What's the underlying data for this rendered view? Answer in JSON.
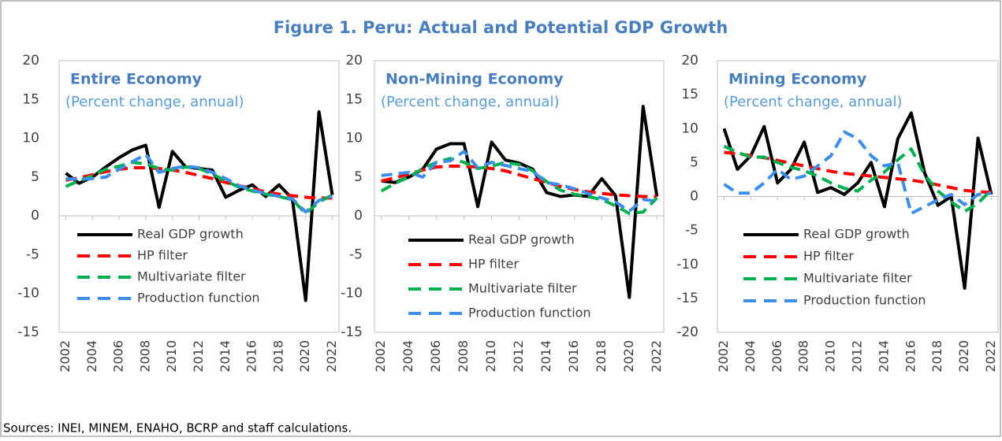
{
  "title": "Figure 1. Peru: Actual and Potential GDP Growth",
  "source": "Sources: INEI, MINEM, ENAHO, BCRP and staff calculations.",
  "chart_data": [
    {
      "type": "line",
      "title": "Entire Economy",
      "subtitle": "(Percent change, annual)",
      "x": [
        2002,
        2003,
        2004,
        2005,
        2006,
        2007,
        2008,
        2009,
        2010,
        2011,
        2012,
        2013,
        2014,
        2015,
        2016,
        2017,
        2018,
        2019,
        2020,
        2021,
        2022
      ],
      "xlim": [
        2001.5,
        2022.5
      ],
      "xticks": [
        2002,
        2004,
        2006,
        2008,
        2010,
        2012,
        2014,
        2016,
        2018,
        2020,
        2022
      ],
      "ylim": [
        -15,
        20
      ],
      "yticks": [
        -15,
        -10,
        -5,
        0,
        5,
        10,
        15,
        20
      ],
      "series": [
        {
          "name": "Real GDP growth",
          "color": "#000000",
          "values": [
            5.5,
            4.2,
            5.0,
            6.3,
            7.5,
            8.5,
            9.1,
            1.1,
            8.3,
            6.3,
            6.1,
            5.9,
            2.4,
            3.3,
            4.0,
            2.5,
            4.0,
            2.2,
            -10.9,
            13.4,
            2.7
          ]
        },
        {
          "name": "HP filter",
          "color": "#ff0000",
          "values": [
            4.6,
            4.9,
            5.3,
            5.7,
            6.0,
            6.2,
            6.2,
            6.1,
            5.9,
            5.6,
            5.2,
            4.8,
            4.3,
            3.9,
            3.5,
            3.1,
            2.8,
            2.6,
            2.4,
            2.3,
            2.3
          ]
        },
        {
          "name": "Multivariate filter",
          "color": "#00b050",
          "values": [
            3.8,
            4.5,
            5.2,
            6.0,
            6.4,
            6.9,
            6.7,
            6.1,
            5.9,
            6.3,
            6.1,
            5.4,
            4.5,
            3.7,
            3.2,
            2.8,
            2.5,
            2.1,
            0.3,
            1.8,
            2.7
          ]
        },
        {
          "name": "Production function",
          "color": "#3d8ee8",
          "values": [
            4.8,
            4.7,
            4.8,
            5.0,
            6.0,
            7.0,
            7.9,
            5.6,
            6.1,
            6.4,
            6.2,
            5.6,
            4.8,
            3.9,
            3.3,
            2.9,
            2.5,
            2.2,
            0.5,
            2.0,
            2.5
          ]
        }
      ]
    },
    {
      "type": "line",
      "title": "Non-Mining Economy",
      "subtitle": "(Percent change, annual)",
      "x": [
        2002,
        2003,
        2004,
        2005,
        2006,
        2007,
        2008,
        2009,
        2010,
        2011,
        2012,
        2013,
        2014,
        2015,
        2016,
        2017,
        2018,
        2019,
        2020,
        2021,
        2022
      ],
      "xlim": [
        2001.5,
        2022.5
      ],
      "xticks": [
        2002,
        2004,
        2006,
        2008,
        2010,
        2012,
        2014,
        2016,
        2018,
        2020,
        2022
      ],
      "ylim": [
        -15,
        20
      ],
      "yticks": [
        -15,
        -10,
        -5,
        0,
        5,
        10,
        15,
        20
      ],
      "series": [
        {
          "name": "Real GDP growth",
          "color": "#000000",
          "values": [
            4.5,
            4.3,
            5.0,
            6.0,
            8.6,
            9.3,
            9.3,
            1.2,
            9.5,
            7.2,
            6.8,
            6.0,
            3.0,
            2.5,
            2.7,
            2.5,
            4.8,
            2.6,
            -10.5,
            14.1,
            2.5
          ]
        },
        {
          "name": "HP filter",
          "color": "#ff0000",
          "values": [
            4.5,
            4.9,
            5.4,
            5.9,
            6.3,
            6.4,
            6.4,
            6.3,
            6.1,
            5.8,
            5.3,
            4.8,
            4.3,
            3.8,
            3.4,
            3.1,
            2.9,
            2.7,
            2.6,
            2.5,
            2.5
          ]
        },
        {
          "name": "Multivariate filter",
          "color": "#00b050",
          "values": [
            3.2,
            4.2,
            5.0,
            6.1,
            6.9,
            7.4,
            6.9,
            6.1,
            6.4,
            6.9,
            6.6,
            5.8,
            4.4,
            3.3,
            2.8,
            2.5,
            2.1,
            1.3,
            0.3,
            0.5,
            2.3
          ]
        },
        {
          "name": "Production function",
          "color": "#3d8ee8",
          "values": [
            5.2,
            5.4,
            5.6,
            5.0,
            6.9,
            7.1,
            8.3,
            6.2,
            6.9,
            6.5,
            6.1,
            5.7,
            4.3,
            4.0,
            3.5,
            2.9,
            2.3,
            1.8,
            0.6,
            2.1,
            1.9
          ]
        }
      ]
    },
    {
      "type": "line",
      "title": "Mining Economy",
      "subtitle": "(Percent change, annual)",
      "x": [
        2002,
        2003,
        2004,
        2005,
        2006,
        2007,
        2008,
        2009,
        2010,
        2011,
        2012,
        2013,
        2014,
        2015,
        2016,
        2017,
        2018,
        2019,
        2020,
        2021,
        2022
      ],
      "xlim": [
        2001.5,
        2022.5
      ],
      "xticks": [
        2002,
        2004,
        2006,
        2008,
        2010,
        2012,
        2014,
        2016,
        2018,
        2020,
        2022
      ],
      "ylim": [
        -20,
        20
      ],
      "yticks": [
        -20,
        -15,
        -10,
        -5,
        0,
        5,
        10,
        15,
        20
      ],
      "series": [
        {
          "name": "Real GDP growth",
          "color": "#000000",
          "values": [
            10.0,
            4.0,
            6.0,
            10.3,
            2.0,
            4.0,
            8.0,
            0.6,
            1.3,
            0.3,
            2.0,
            5.0,
            -1.5,
            8.5,
            12.3,
            3.5,
            -1.3,
            0.0,
            -13.5,
            8.6,
            0.3
          ]
        },
        {
          "name": "HP filter",
          "color": "#ff0000",
          "values": [
            6.5,
            6.3,
            6.0,
            5.7,
            5.3,
            4.9,
            4.5,
            4.1,
            3.7,
            3.4,
            3.2,
            3.0,
            2.8,
            2.6,
            2.4,
            2.1,
            1.7,
            1.3,
            0.9,
            0.7,
            0.6
          ]
        },
        {
          "name": "Multivariate filter",
          "color": "#00b050",
          "values": [
            7.4,
            6.5,
            5.8,
            5.8,
            5.0,
            4.3,
            3.8,
            3.0,
            2.0,
            1.2,
            0.8,
            2.4,
            3.6,
            5.4,
            7.0,
            3.2,
            0.8,
            -0.8,
            -2.2,
            -1.0,
            1.0
          ]
        },
        {
          "name": "Production function",
          "color": "#3d8ee8",
          "values": [
            1.8,
            0.5,
            0.5,
            2.0,
            4.0,
            2.5,
            3.0,
            4.5,
            6.0,
            9.5,
            8.5,
            6.0,
            4.5,
            5.0,
            -2.5,
            -1.5,
            -0.5,
            0.3,
            -1.2,
            0.3,
            0.5
          ]
        }
      ]
    }
  ]
}
